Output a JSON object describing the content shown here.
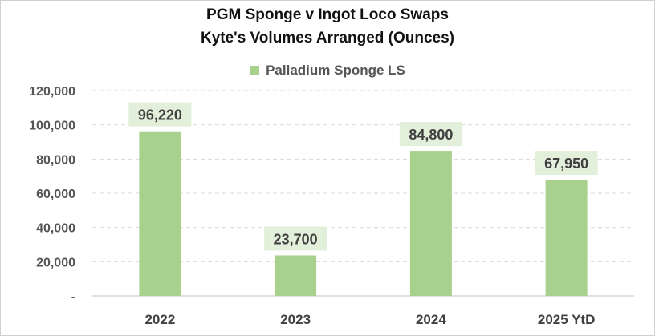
{
  "chart_data": {
    "type": "bar",
    "title_line1": "PGM Sponge v Ingot Loco Swaps",
    "title_line2": "Kyte's Volumes Arranged (Ounces)",
    "categories": [
      "2022",
      "2023",
      "2024",
      "2025 YtD"
    ],
    "series": [
      {
        "name": "Palladium Sponge LS",
        "values": [
          96220,
          23700,
          84800,
          67950
        ],
        "color": "#a9d18e"
      }
    ],
    "data_labels": [
      "96,220",
      "23,700",
      "84,800",
      "67,950"
    ],
    "ytick_labels": [
      "-",
      "20,000",
      "40,000",
      "60,000",
      "80,000",
      "100,000",
      "120,000"
    ],
    "yticks": [
      0,
      20000,
      40000,
      60000,
      80000,
      100000,
      120000
    ],
    "ylim": [
      0,
      120000
    ],
    "grid": "horizontal dashed",
    "legend_position": "top",
    "label_bg_color": "#e2efda"
  }
}
